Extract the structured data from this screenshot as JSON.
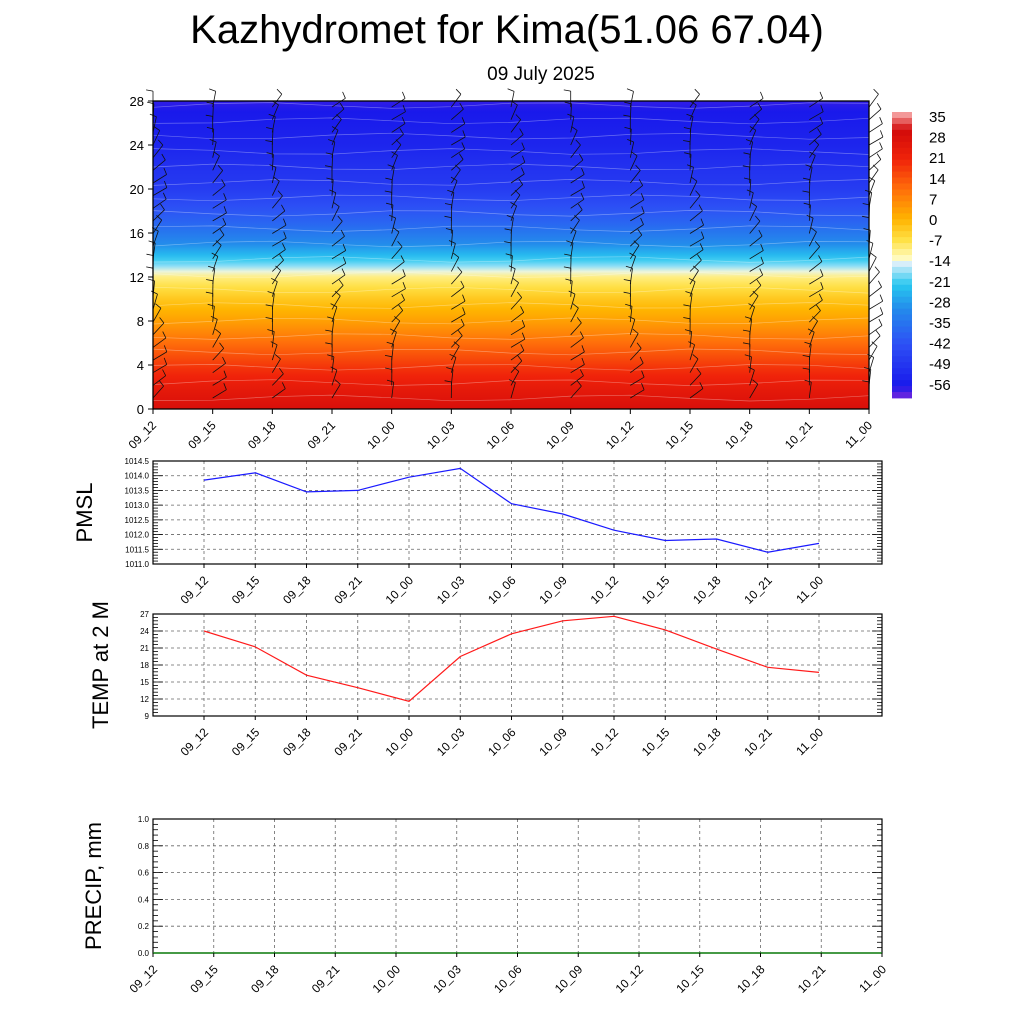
{
  "title": "Kazhydromet for Kima(51.06 67.04)",
  "subtitle": "09 July 2025",
  "colors": {
    "pmsl_line": "#1a1aff",
    "temp_line": "#ff1a1a",
    "precip_line": "#1a8a1a",
    "grid": "#555555"
  },
  "chart_data": [
    {
      "type": "heatmap",
      "title": "",
      "x": [
        "09_12",
        "09_15",
        "09_18",
        "09_21",
        "10_00",
        "10_03",
        "10_06",
        "10_09",
        "10_12",
        "10_15",
        "10_18",
        "10_21",
        "11_00"
      ],
      "yticks": [
        0,
        4,
        8,
        12,
        16,
        20,
        24,
        28
      ],
      "ylim": [
        0,
        28
      ],
      "colorbar": {
        "labels": [
          "35",
          "28",
          "21",
          "14",
          "7",
          "0",
          "-7",
          "-14",
          "-21",
          "-28",
          "-35",
          "-42",
          "-49",
          "-56"
        ],
        "range": [
          -60,
          36
        ]
      },
      "temperature_profile": {
        "heights": [
          0,
          2,
          4,
          6,
          8,
          10,
          12,
          13,
          15,
          17,
          20,
          24,
          28
        ],
        "values": [
          28,
          23,
          17,
          10,
          3,
          -3,
          -10,
          -18,
          -30,
          -38,
          -47,
          -53,
          -57
        ]
      },
      "wind_barbs": true
    },
    {
      "type": "line",
      "ylabel": "PMSL",
      "x": [
        "09_12",
        "09_15",
        "09_18",
        "09_21",
        "10_00",
        "10_03",
        "10_06",
        "10_09",
        "10_12",
        "10_15",
        "10_18",
        "10_21",
        "11_00"
      ],
      "yticks": [
        "1011.0",
        "1011.5",
        "1012.0",
        "1012.5",
        "1013.0",
        "1013.5",
        "1014.0",
        "1014.5"
      ],
      "ylim": [
        1011.0,
        1014.5
      ],
      "series": [
        {
          "values": [
            1013.85,
            1014.1,
            1013.45,
            1013.5,
            1013.95,
            1014.25,
            1013.05,
            1012.7,
            1012.15,
            1011.8,
            1011.85,
            1011.4,
            1011.7
          ]
        }
      ],
      "grid": true
    },
    {
      "type": "line",
      "ylabel": "TEMP at 2 M",
      "x": [
        "09_12",
        "09_15",
        "09_18",
        "09_21",
        "10_00",
        "10_03",
        "10_06",
        "10_09",
        "10_12",
        "10_15",
        "10_18",
        "10_21",
        "11_00"
      ],
      "yticks": [
        "9",
        "12",
        "15",
        "18",
        "21",
        "24",
        "27"
      ],
      "ylim": [
        9,
        27
      ],
      "series": [
        {
          "values": [
            24,
            21.2,
            16.2,
            14,
            11.6,
            19.5,
            23.5,
            25.8,
            26.6,
            24.2,
            20.8,
            17.6,
            16.7
          ]
        }
      ],
      "grid": true
    },
    {
      "type": "line",
      "ylabel": "PRECIP, mm",
      "x": [
        "09_12",
        "09_15",
        "09_18",
        "09_21",
        "10_00",
        "10_03",
        "10_06",
        "10_09",
        "10_12",
        "10_15",
        "10_18",
        "10_21",
        "11_00"
      ],
      "yticks": [
        "0.0",
        "0.2",
        "0.4",
        "0.6",
        "0.8",
        "1.0"
      ],
      "ylim": [
        0,
        1
      ],
      "series": [
        {
          "values": [
            0,
            0,
            0,
            0,
            0,
            0,
            0,
            0,
            0,
            0,
            0,
            0,
            0
          ]
        }
      ],
      "grid": true
    }
  ]
}
